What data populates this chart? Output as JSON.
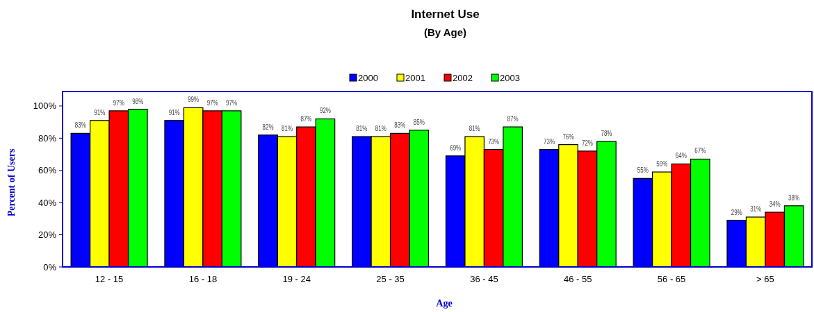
{
  "chart_data": {
    "type": "bar",
    "title": "Internet Use",
    "subtitle": "(By Age)",
    "xlabel": "Age",
    "ylabel": "Percent of Users",
    "categories": [
      "12 - 15",
      "16 - 18",
      "19 - 24",
      "25 - 35",
      "36 - 45",
      "46 - 55",
      "56 - 65",
      "> 65"
    ],
    "series": [
      {
        "name": "2000",
        "color": "#0000ff",
        "values": [
          83,
          91,
          82,
          81,
          69,
          73,
          55,
          29
        ],
        "value_labels": [
          "83%",
          "91%",
          "82%",
          "81%",
          "69%",
          "73%",
          "55%",
          "29%"
        ]
      },
      {
        "name": "2001",
        "color": "#ffff00",
        "values": [
          91,
          99,
          81,
          81,
          81,
          76,
          59,
          31
        ],
        "value_labels": [
          "91%",
          "99%",
          "81%",
          "81%",
          "81%",
          "76%",
          "59%",
          "31%"
        ]
      },
      {
        "name": "2002",
        "color": "#ff0000",
        "values": [
          97,
          97,
          87,
          83,
          73,
          72,
          64,
          34
        ],
        "value_labels": [
          "97%",
          "97%",
          "87%",
          "83%",
          "73%",
          "72%",
          "64%",
          "34%"
        ]
      },
      {
        "name": "2003",
        "color": "#00ff00",
        "values": [
          98,
          97,
          92,
          85,
          87,
          78,
          67,
          38
        ],
        "value_labels": [
          "98%",
          "97%",
          "92%",
          "85%",
          "87%",
          "78%",
          "67%",
          "38%"
        ]
      }
    ],
    "ylim": [
      0,
      109
    ],
    "yticks": [
      {
        "value": 0,
        "label": "0%"
      },
      {
        "value": 20,
        "label": "20%"
      },
      {
        "value": 40,
        "label": "40%"
      },
      {
        "value": 60,
        "label": "60%"
      },
      {
        "value": 80,
        "label": "80%"
      },
      {
        "value": 100,
        "label": "100%"
      }
    ],
    "grid": false,
    "legend": "top"
  }
}
